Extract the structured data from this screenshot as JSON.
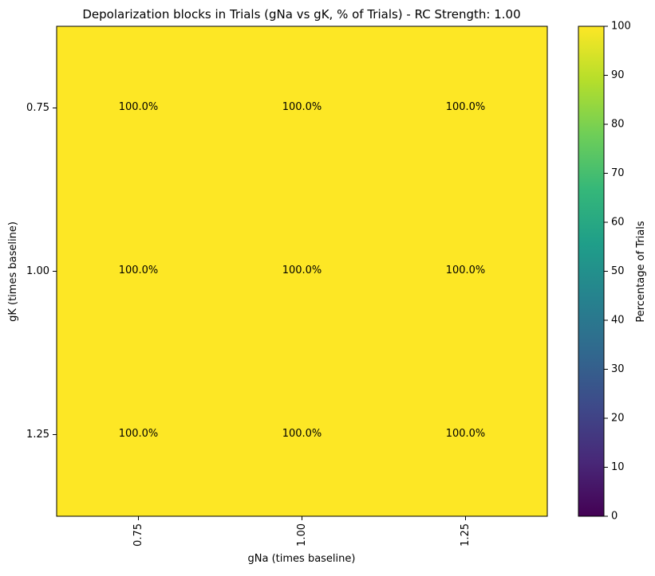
{
  "chart_data": {
    "type": "heatmap",
    "title": "Depolarization blocks in Trials (gNa vs gK, % of Trials) - RC Strength: 1.00",
    "xlabel": "gNa (times baseline)",
    "ylabel": "gK (times baseline)",
    "x_categories": [
      "0.75",
      "1.00",
      "1.25"
    ],
    "y_categories": [
      "0.75",
      "1.00",
      "1.25"
    ],
    "values": [
      [
        100,
        100,
        100
      ],
      [
        100,
        100,
        100
      ],
      [
        100,
        100,
        100
      ]
    ],
    "cell_labels": [
      [
        "100.0%",
        "100.0%",
        "100.0%"
      ],
      [
        "100.0%",
        "100.0%",
        "100.0%"
      ],
      [
        "100.0%",
        "100.0%",
        "100.0%"
      ]
    ],
    "colorbar": {
      "label": "Percentage of Trials",
      "min": 0,
      "max": 100,
      "ticks": [
        "0",
        "10",
        "20",
        "30",
        "40",
        "50",
        "60",
        "70",
        "80",
        "90",
        "100"
      ],
      "colormap": "viridis"
    },
    "grid": false
  }
}
